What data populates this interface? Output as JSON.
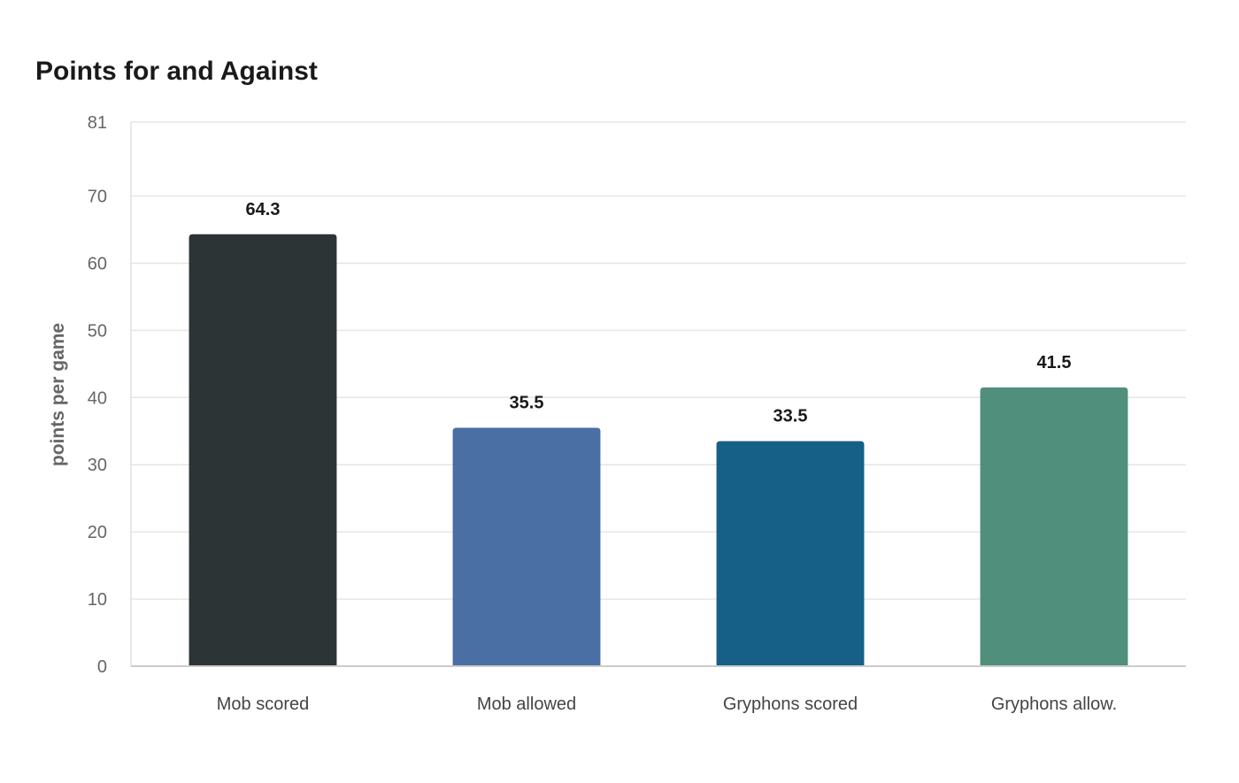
{
  "chart_data": {
    "type": "bar",
    "title": "Points for and Against",
    "xlabel": "",
    "ylabel": "points per game",
    "categories": [
      "Mob scored",
      "Mob allowed",
      "Gryphons scored",
      "Gryphons allow."
    ],
    "values": [
      64.3,
      35.5,
      33.5,
      41.5
    ],
    "value_labels": [
      "64.3",
      "35.5",
      "33.5",
      "41.5"
    ],
    "bar_colors": [
      "#2d3436",
      "#4a6fa5",
      "#166088",
      "#4f8f7c"
    ],
    "ylim": [
      0,
      81
    ],
    "yticks": [
      0,
      10,
      20,
      30,
      40,
      50,
      60,
      70,
      81
    ],
    "grid": true,
    "legend": "none"
  }
}
